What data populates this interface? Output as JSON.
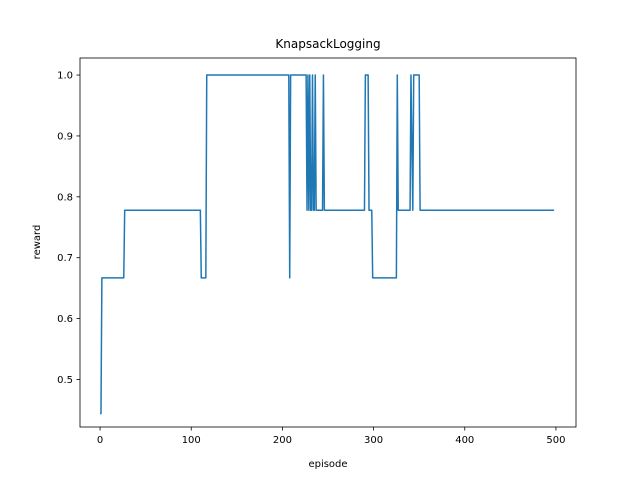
{
  "chart_data": {
    "type": "line",
    "title": "KnapsackLogging",
    "xlabel": "episode",
    "ylabel": "reward",
    "xlim": [
      -22,
      522
    ],
    "ylim": [
      0.422,
      1.028
    ],
    "xticks": [
      0,
      100,
      200,
      300,
      400,
      500
    ],
    "xtick_labels": [
      "0",
      "100",
      "200",
      "300",
      "400",
      "500"
    ],
    "yticks": [
      0.5,
      0.6,
      0.7,
      0.8,
      0.9,
      1.0
    ],
    "ytick_labels": [
      "0.5",
      "0.6",
      "0.7",
      "0.8",
      "0.9",
      "1.0"
    ],
    "grid": false,
    "line_color": "#1f77b4",
    "series": [
      {
        "x": [
          0,
          1,
          2,
          26,
          27,
          110,
          111,
          116,
          117,
          207,
          208,
          209,
          210,
          226,
          227,
          228,
          229,
          230,
          231,
          232,
          233,
          234,
          235,
          236,
          237,
          238,
          239,
          244,
          245,
          246,
          290,
          291,
          294,
          295,
          296,
          298,
          299,
          325,
          326,
          327,
          340,
          341,
          343,
          344,
          346,
          347,
          350,
          351,
          498
        ],
        "y": [
          0.444,
          0.444,
          0.667,
          0.667,
          0.778,
          0.778,
          0.667,
          0.667,
          1.0,
          1.0,
          0.667,
          1.0,
          1.0,
          1.0,
          0.778,
          1.0,
          0.778,
          1.0,
          0.778,
          0.778,
          1.0,
          0.778,
          0.778,
          1.0,
          0.778,
          0.778,
          0.778,
          0.778,
          1.0,
          0.778,
          0.778,
          1.0,
          1.0,
          0.778,
          0.778,
          0.778,
          0.667,
          0.667,
          1.0,
          0.778,
          0.778,
          1.0,
          0.778,
          1.0,
          1.0,
          1.0,
          1.0,
          0.778,
          0.778
        ]
      }
    ]
  }
}
